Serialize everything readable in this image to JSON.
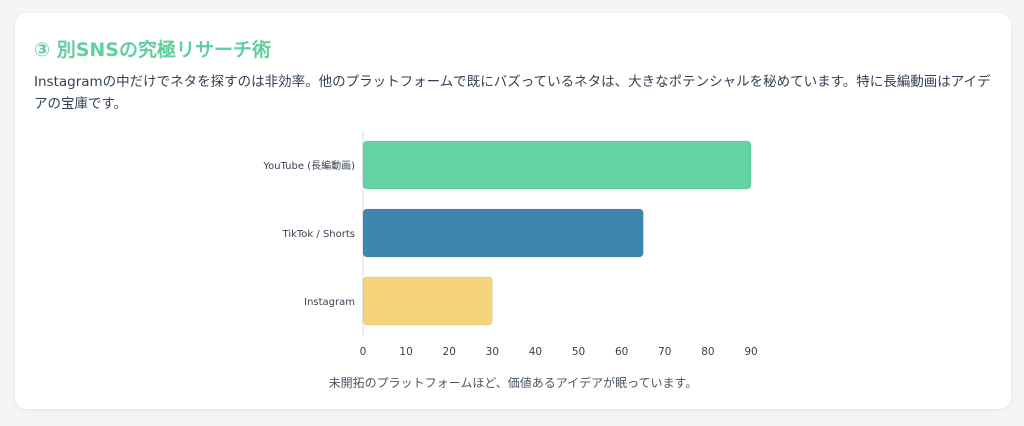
{
  "section": {
    "title": "③ 別SNSの究極リサーチ術",
    "description": "Instagramの中だけでネタを探すのは非効率。他のプラットフォームで既にバズっているネタは、大きなポテンシャルを秘めています。特に長編動画はアイデアの宝庫です。",
    "caption": "未開拓のプラットフォームほど、価値あるアイデアが眠っています。"
  },
  "chart_data": {
    "type": "bar",
    "orientation": "horizontal",
    "categories": [
      "YouTube (長編動画)",
      "TikTok / Shorts",
      "Instagram"
    ],
    "values": [
      90,
      65,
      30
    ],
    "colors": [
      "#63d3a4",
      "#3d87ae",
      "#f6d57a"
    ],
    "xlim": [
      0,
      90
    ],
    "xticks": [
      0,
      10,
      20,
      30,
      40,
      50,
      60,
      70,
      80,
      90
    ],
    "title": "",
    "xlabel": "",
    "ylabel": "",
    "grid": false,
    "legend": "none"
  }
}
